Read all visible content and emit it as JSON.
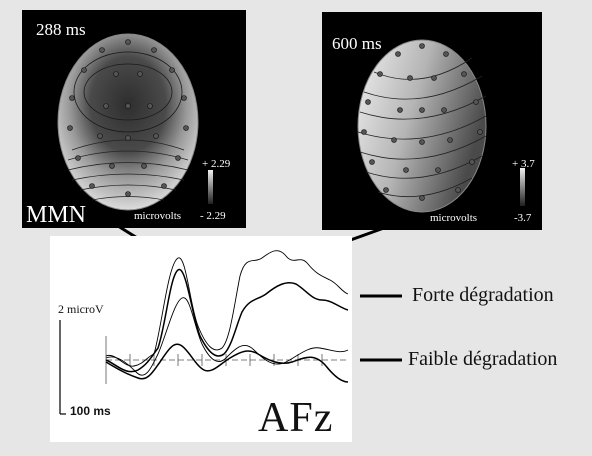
{
  "maps": {
    "left": {
      "time": "288 ms",
      "label": "MMN",
      "scale_top": "+ 2.29",
      "scale_bottom": "- 2.29",
      "unit": "microvolts"
    },
    "right": {
      "time": "600 ms",
      "scale_top": "+ 3.7",
      "scale_bottom": "-3.7",
      "unit": "microvolts"
    }
  },
  "erp": {
    "amplitude_scale": "2 microV",
    "time_scale": "100 ms",
    "electrode": "AFz"
  },
  "legend": {
    "strong": "Forte dégradation",
    "weak": "Faible dégradation"
  },
  "colors": {
    "background": "#e6e6e6",
    "panel": "#000000",
    "head_dark": "#3c3c3c",
    "head_light": "#e8e8e8"
  }
}
